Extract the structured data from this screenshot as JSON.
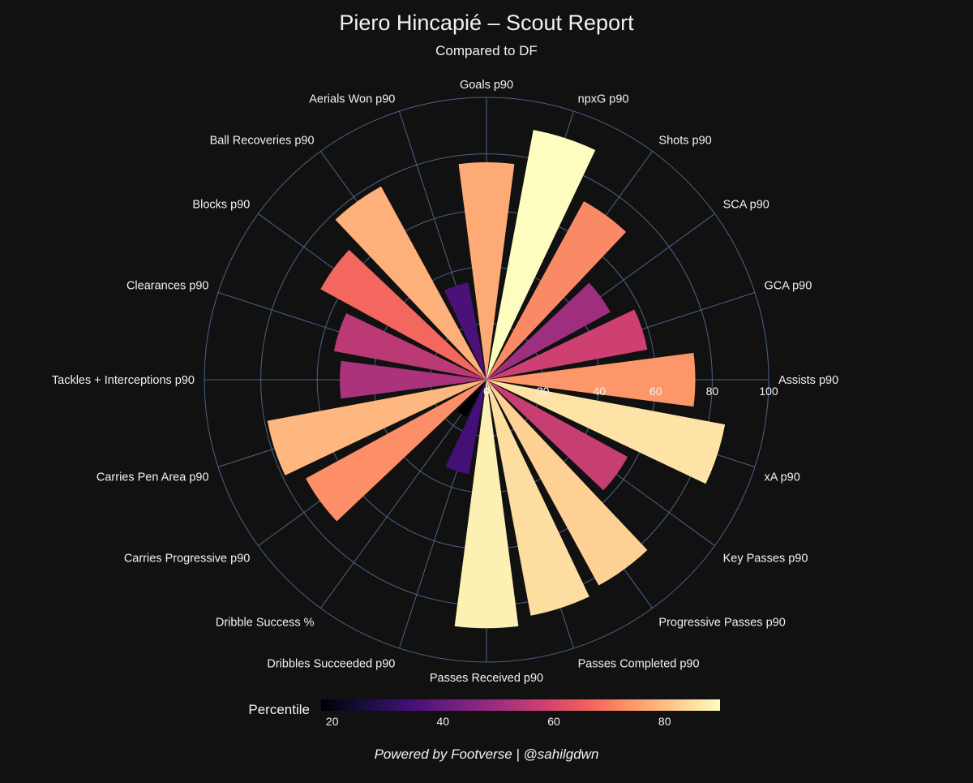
{
  "chart_data": {
    "type": "polar-bar",
    "title": "Piero Hincapié – Scout Report",
    "subtitle": "Compared to DF",
    "radial_range": [
      0,
      100
    ],
    "radial_ticks": [
      "0",
      "20",
      "40",
      "60",
      "80",
      "100"
    ],
    "direction": "clockwise",
    "start_category": "Goals p90",
    "categories": [
      "Goals p90",
      "npxG p90",
      "Shots p90",
      "SCA p90",
      "GCA p90",
      "Assists p90",
      "xA p90",
      "Key Passes p90",
      "Progressive Passes p90",
      "Passes Completed p90",
      "Passes Received p90",
      "Dribbles Succeeded p90",
      "Dribble Success %",
      "Carries Progressive p90",
      "Carries Pen Area p90",
      "Tackles + Interceptions p90",
      "Clearances p90",
      "Blocks p90",
      "Ball Recoveries p90",
      "Aerials Won p90"
    ],
    "values": [
      77,
      90,
      72,
      50,
      58,
      74,
      86,
      57,
      83,
      85,
      88,
      34,
      15,
      73,
      79,
      52,
      55,
      67,
      78,
      35
    ],
    "colorscale": {
      "name": "Magma",
      "title": "Percentile",
      "range": [
        18,
        90
      ],
      "ticks": [
        "20",
        "40",
        "60",
        "80"
      ],
      "stops": [
        "#000004",
        "#180f3d",
        "#440f76",
        "#721f81",
        "#9e2f7f",
        "#cd4071",
        "#f1605d",
        "#fd9668",
        "#feca8d",
        "#fcfdbf"
      ]
    },
    "grid": true,
    "grid_color": "#4a6485",
    "background_color": "#111111"
  },
  "footer": {
    "credit": "Powered by Footverse | @sahilgdwn"
  }
}
